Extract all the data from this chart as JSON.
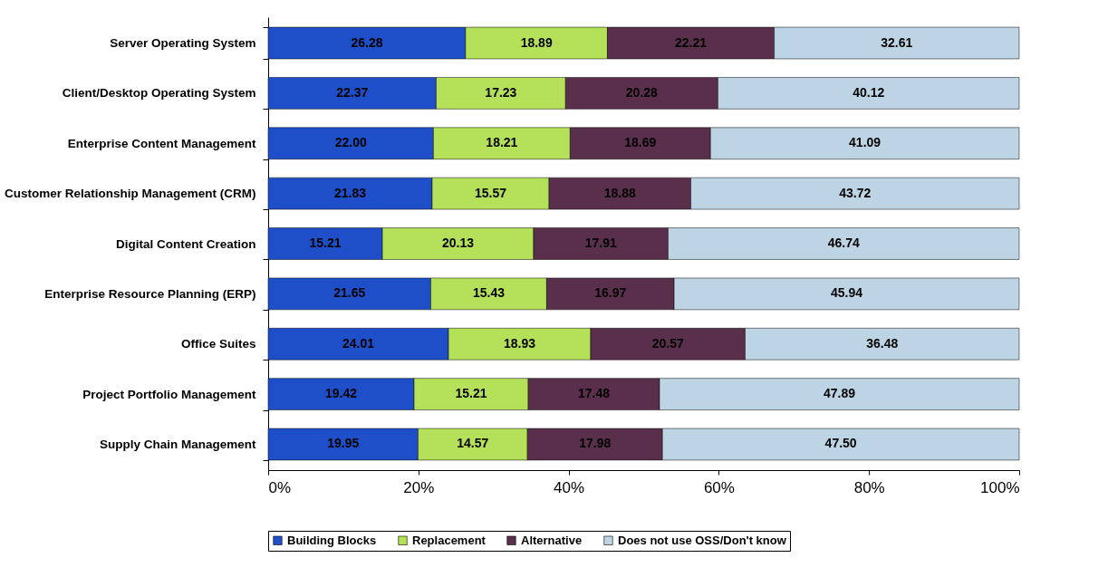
{
  "chart_data": {
    "type": "bar",
    "orientation": "horizontal",
    "stacked": true,
    "categories": [
      "Server Operating System",
      "Client/Desktop Operating System",
      "Enterprise Content Management",
      "Customer Relationship Management (CRM)",
      "Digital Content Creation",
      "Enterprise Resource Planning (ERP)",
      "Office Suites",
      "Project Portfolio Management",
      "Supply Chain Management"
    ],
    "series": [
      {
        "name": "Building Blocks",
        "color": "#1f4fc8",
        "values": [
          26.28,
          22.37,
          22.0,
          21.83,
          15.21,
          21.65,
          24.01,
          19.42,
          19.95
        ],
        "value_labels": [
          "26.28",
          "22.37",
          "22.00",
          "21.83",
          "15.21",
          "21.65",
          "24.01",
          "19.42",
          "19.95"
        ]
      },
      {
        "name": "Replacement",
        "color": "#b4e05a",
        "values": [
          18.89,
          17.23,
          18.21,
          15.57,
          20.13,
          15.43,
          18.93,
          15.21,
          14.57
        ],
        "value_labels": [
          "18.89",
          "17.23",
          "18.21",
          "15.57",
          "20.13",
          "15.43",
          "18.93",
          "15.21",
          "14.57"
        ]
      },
      {
        "name": "Alternative",
        "color": "#5a2f4c",
        "values": [
          22.21,
          20.28,
          18.69,
          18.88,
          17.91,
          16.97,
          20.57,
          17.48,
          17.98
        ],
        "value_labels": [
          "22.21",
          "20.28",
          "18.69",
          "18.88",
          "17.91",
          "16.97",
          "20.57",
          "17.48",
          "17.98"
        ]
      },
      {
        "name": "Does not use OSS/Don't know",
        "color": "#bdd4e4",
        "values": [
          32.61,
          40.12,
          41.09,
          43.72,
          46.74,
          45.94,
          36.48,
          47.89,
          47.5
        ],
        "value_labels": [
          "32.61",
          "40.12",
          "41.09",
          "43.72",
          "46.74",
          "45.94",
          "36.48",
          "47.89",
          "47.50"
        ]
      }
    ],
    "xlim": [
      0,
      100
    ],
    "xticks": [
      {
        "value": 0,
        "label": "0%"
      },
      {
        "value": 20,
        "label": "20%"
      },
      {
        "value": 40,
        "label": "40%"
      },
      {
        "value": 60,
        "label": "60%"
      },
      {
        "value": 80,
        "label": "80%"
      },
      {
        "value": 100,
        "label": "100%"
      }
    ],
    "grid": false,
    "legend": "bottom"
  }
}
